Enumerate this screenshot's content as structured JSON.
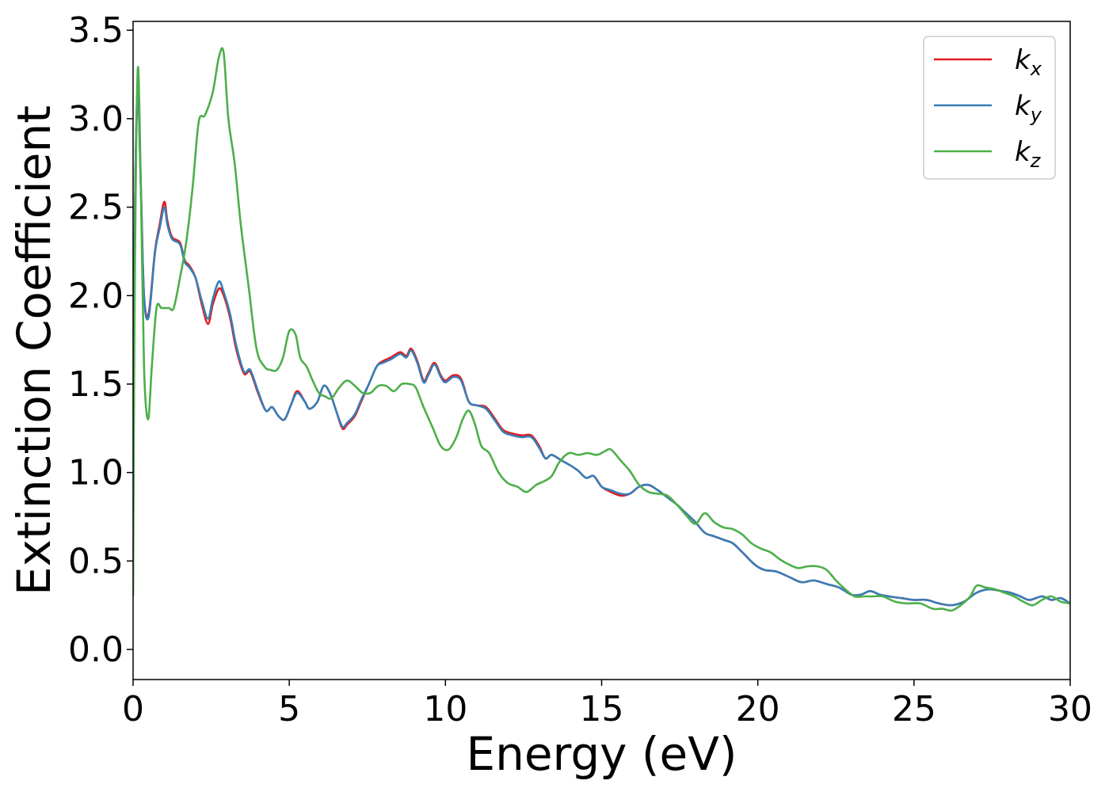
{
  "chart_data": {
    "type": "line",
    "title": "",
    "xlabel": "Energy (eV)",
    "ylabel": "Extinction Coefficient",
    "xlim": [
      0,
      30
    ],
    "ylim": [
      -0.17,
      3.55
    ],
    "xticks": [
      0,
      5,
      10,
      15,
      20,
      25,
      30
    ],
    "xtick_labels": [
      "0",
      "5",
      "10",
      "15",
      "20",
      "25",
      "30"
    ],
    "yticks": [
      0.0,
      0.5,
      1.0,
      1.5,
      2.0,
      2.5,
      3.0,
      3.5
    ],
    "ytick_labels": [
      "0.0",
      "0.5",
      "1.0",
      "1.5",
      "2.0",
      "2.5",
      "3.0",
      "3.5"
    ],
    "grid": false,
    "legend_position": "top-right",
    "series": [
      {
        "name": "k",
        "subscript": "x",
        "color": "#e41a1c",
        "x": [
          0.0,
          0.05,
          0.15,
          0.25,
          0.35,
          0.5,
          0.7,
          0.85,
          1.0,
          1.1,
          1.25,
          1.5,
          1.65,
          1.8,
          2.0,
          2.2,
          2.4,
          2.55,
          2.75,
          2.9,
          3.1,
          3.3,
          3.55,
          3.75,
          4.0,
          4.25,
          4.45,
          4.65,
          4.85,
          5.05,
          5.25,
          5.5,
          5.65,
          5.9,
          6.1,
          6.3,
          6.5,
          6.7,
          6.85,
          7.1,
          7.3,
          7.55,
          7.8,
          8.0,
          8.25,
          8.55,
          8.75,
          8.9,
          9.1,
          9.3,
          9.45,
          9.65,
          9.85,
          10.0,
          10.25,
          10.5,
          10.75,
          11.0,
          11.3,
          11.6,
          11.85,
          12.15,
          12.45,
          12.75,
          13.0,
          13.2,
          13.4,
          13.7,
          14.0,
          14.25,
          14.5,
          14.75,
          15.0,
          15.3,
          15.6,
          15.9,
          16.2,
          16.5,
          16.8,
          17.1,
          17.4,
          17.7,
          18.0,
          18.3,
          18.6,
          18.9,
          19.2,
          19.5,
          19.9,
          20.2,
          20.6,
          21.0,
          21.4,
          21.8,
          22.2,
          22.6,
          23.0,
          23.3,
          23.6,
          23.9,
          24.2,
          24.6,
          25.0,
          25.4,
          25.8,
          26.2,
          26.6,
          27.0,
          27.4,
          27.8,
          28.1,
          28.4,
          28.7,
          29.1,
          29.4,
          29.7,
          30.0
        ],
        "values": [
          0.5,
          2.3,
          3.17,
          2.6,
          2.0,
          1.9,
          2.25,
          2.4,
          2.53,
          2.42,
          2.33,
          2.3,
          2.2,
          2.17,
          2.1,
          1.95,
          1.84,
          1.95,
          2.04,
          2.0,
          1.88,
          1.7,
          1.56,
          1.57,
          1.45,
          1.35,
          1.37,
          1.32,
          1.3,
          1.38,
          1.46,
          1.4,
          1.36,
          1.4,
          1.49,
          1.45,
          1.35,
          1.25,
          1.27,
          1.32,
          1.4,
          1.5,
          1.6,
          1.63,
          1.65,
          1.68,
          1.66,
          1.7,
          1.63,
          1.52,
          1.56,
          1.62,
          1.55,
          1.52,
          1.55,
          1.53,
          1.4,
          1.38,
          1.37,
          1.3,
          1.24,
          1.22,
          1.21,
          1.21,
          1.15,
          1.08,
          1.1,
          1.07,
          1.04,
          1.01,
          0.97,
          0.98,
          0.92,
          0.89,
          0.87,
          0.88,
          0.92,
          0.93,
          0.9,
          0.86,
          0.82,
          0.77,
          0.72,
          0.66,
          0.64,
          0.62,
          0.6,
          0.55,
          0.48,
          0.45,
          0.44,
          0.41,
          0.38,
          0.39,
          0.37,
          0.35,
          0.31,
          0.31,
          0.33,
          0.31,
          0.3,
          0.29,
          0.28,
          0.28,
          0.26,
          0.25,
          0.27,
          0.32,
          0.34,
          0.33,
          0.32,
          0.3,
          0.28,
          0.3,
          0.28,
          0.29,
          0.26
        ]
      },
      {
        "name": "k",
        "subscript": "y",
        "color": "#377eb8",
        "x": [
          0.0,
          0.05,
          0.15,
          0.25,
          0.35,
          0.5,
          0.7,
          0.85,
          1.0,
          1.1,
          1.25,
          1.5,
          1.65,
          1.8,
          2.0,
          2.2,
          2.4,
          2.55,
          2.75,
          2.9,
          3.1,
          3.3,
          3.55,
          3.75,
          4.0,
          4.25,
          4.45,
          4.65,
          4.85,
          5.05,
          5.25,
          5.5,
          5.65,
          5.9,
          6.1,
          6.3,
          6.5,
          6.7,
          6.85,
          7.1,
          7.3,
          7.55,
          7.8,
          8.0,
          8.25,
          8.55,
          8.75,
          8.9,
          9.1,
          9.3,
          9.45,
          9.65,
          9.85,
          10.0,
          10.25,
          10.5,
          10.75,
          11.0,
          11.3,
          11.6,
          11.85,
          12.15,
          12.45,
          12.75,
          13.0,
          13.2,
          13.4,
          13.7,
          14.0,
          14.25,
          14.5,
          14.75,
          15.0,
          15.3,
          15.6,
          15.9,
          16.2,
          16.5,
          16.8,
          17.1,
          17.4,
          17.7,
          18.0,
          18.3,
          18.6,
          18.9,
          19.2,
          19.5,
          19.9,
          20.2,
          20.6,
          21.0,
          21.4,
          21.8,
          22.2,
          22.6,
          23.0,
          23.3,
          23.6,
          23.9,
          24.2,
          24.6,
          25.0,
          25.4,
          25.8,
          26.2,
          26.6,
          27.0,
          27.4,
          27.8,
          28.1,
          28.4,
          28.7,
          29.1,
          29.4,
          29.7,
          30.0
        ],
        "values": [
          0.5,
          2.3,
          3.15,
          2.6,
          2.0,
          1.88,
          2.24,
          2.38,
          2.5,
          2.4,
          2.32,
          2.29,
          2.19,
          2.16,
          2.1,
          1.97,
          1.87,
          1.98,
          2.08,
          2.02,
          1.9,
          1.72,
          1.57,
          1.58,
          1.46,
          1.35,
          1.37,
          1.32,
          1.3,
          1.38,
          1.45,
          1.4,
          1.36,
          1.4,
          1.49,
          1.45,
          1.35,
          1.26,
          1.28,
          1.33,
          1.41,
          1.5,
          1.6,
          1.62,
          1.64,
          1.67,
          1.65,
          1.69,
          1.62,
          1.51,
          1.55,
          1.61,
          1.54,
          1.51,
          1.54,
          1.52,
          1.4,
          1.38,
          1.36,
          1.29,
          1.23,
          1.21,
          1.2,
          1.2,
          1.14,
          1.08,
          1.1,
          1.07,
          1.04,
          1.01,
          0.97,
          0.98,
          0.92,
          0.9,
          0.88,
          0.88,
          0.92,
          0.93,
          0.9,
          0.86,
          0.82,
          0.77,
          0.72,
          0.66,
          0.64,
          0.62,
          0.6,
          0.55,
          0.48,
          0.45,
          0.44,
          0.41,
          0.38,
          0.39,
          0.37,
          0.35,
          0.31,
          0.31,
          0.33,
          0.31,
          0.3,
          0.29,
          0.28,
          0.28,
          0.26,
          0.25,
          0.27,
          0.32,
          0.34,
          0.33,
          0.32,
          0.3,
          0.28,
          0.3,
          0.28,
          0.29,
          0.26
        ]
      },
      {
        "name": "k",
        "subscript": "z",
        "color": "#4daf4a",
        "x": [
          0.0,
          0.05,
          0.15,
          0.25,
          0.35,
          0.48,
          0.6,
          0.75,
          0.9,
          1.0,
          1.15,
          1.3,
          1.5,
          1.7,
          1.9,
          2.1,
          2.3,
          2.55,
          2.75,
          2.9,
          3.05,
          3.25,
          3.45,
          3.7,
          3.95,
          4.2,
          4.4,
          4.6,
          4.8,
          5.0,
          5.2,
          5.35,
          5.55,
          5.75,
          5.95,
          6.15,
          6.35,
          6.6,
          6.85,
          7.1,
          7.35,
          7.6,
          7.85,
          8.1,
          8.35,
          8.6,
          8.85,
          9.05,
          9.3,
          9.6,
          9.85,
          10.1,
          10.35,
          10.55,
          10.75,
          10.95,
          11.15,
          11.4,
          11.7,
          12.0,
          12.3,
          12.6,
          12.9,
          13.15,
          13.4,
          13.65,
          13.95,
          14.25,
          14.55,
          14.85,
          15.1,
          15.3,
          15.6,
          15.9,
          16.2,
          16.5,
          16.8,
          17.1,
          17.4,
          17.7,
          18.0,
          18.3,
          18.6,
          18.9,
          19.2,
          19.5,
          19.8,
          20.1,
          20.4,
          20.7,
          21.0,
          21.3,
          21.6,
          21.9,
          22.2,
          22.5,
          22.8,
          23.1,
          23.4,
          23.7,
          24.0,
          24.4,
          24.8,
          25.2,
          25.6,
          25.9,
          26.2,
          26.5,
          26.8,
          27.0,
          27.3,
          27.6,
          27.9,
          28.2,
          28.5,
          28.8,
          29.1,
          29.4,
          29.7,
          30.0
        ],
        "values": [
          0.3,
          2.0,
          3.28,
          2.6,
          1.6,
          1.3,
          1.6,
          1.93,
          1.93,
          1.93,
          1.93,
          1.93,
          2.1,
          2.3,
          2.6,
          2.98,
          3.02,
          3.15,
          3.35,
          3.37,
          3.0,
          2.75,
          2.4,
          2.05,
          1.7,
          1.6,
          1.58,
          1.58,
          1.65,
          1.8,
          1.78,
          1.65,
          1.6,
          1.52,
          1.45,
          1.43,
          1.42,
          1.48,
          1.52,
          1.49,
          1.45,
          1.45,
          1.49,
          1.49,
          1.46,
          1.5,
          1.5,
          1.48,
          1.37,
          1.25,
          1.15,
          1.13,
          1.2,
          1.3,
          1.35,
          1.27,
          1.15,
          1.11,
          1.0,
          0.94,
          0.92,
          0.89,
          0.93,
          0.95,
          0.98,
          1.06,
          1.11,
          1.1,
          1.11,
          1.1,
          1.12,
          1.13,
          1.07,
          1.01,
          0.93,
          0.89,
          0.88,
          0.87,
          0.82,
          0.76,
          0.71,
          0.77,
          0.72,
          0.69,
          0.68,
          0.65,
          0.6,
          0.57,
          0.55,
          0.51,
          0.48,
          0.46,
          0.47,
          0.47,
          0.45,
          0.39,
          0.34,
          0.3,
          0.3,
          0.3,
          0.3,
          0.27,
          0.26,
          0.26,
          0.23,
          0.23,
          0.22,
          0.25,
          0.3,
          0.36,
          0.35,
          0.34,
          0.32,
          0.3,
          0.27,
          0.25,
          0.28,
          0.3,
          0.27,
          0.26
        ]
      }
    ]
  }
}
